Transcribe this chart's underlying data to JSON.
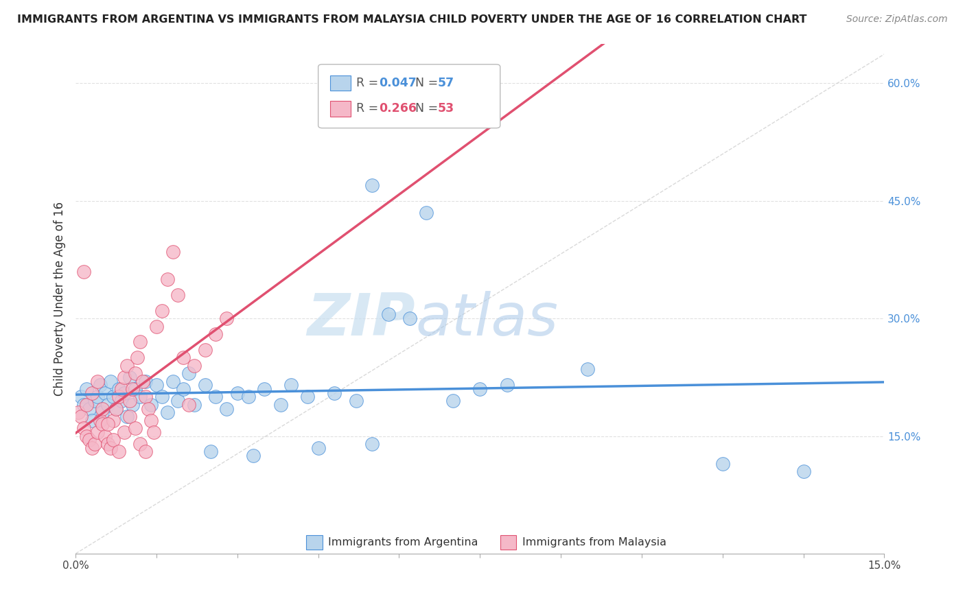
{
  "title": "IMMIGRANTS FROM ARGENTINA VS IMMIGRANTS FROM MALAYSIA CHILD POVERTY UNDER THE AGE OF 16 CORRELATION CHART",
  "source": "Source: ZipAtlas.com",
  "ylabel": "Child Poverty Under the Age of 16",
  "xlim": [
    0.0,
    15.0
  ],
  "ylim": [
    0.0,
    65.0
  ],
  "ytick_vals": [
    15.0,
    30.0,
    45.0,
    60.0
  ],
  "ytick_labels": [
    "15.0%",
    "30.0%",
    "45.0%",
    "60.0%"
  ],
  "xticks": [
    0.0,
    1.5,
    3.0,
    4.5,
    6.0,
    7.5,
    9.0,
    10.5,
    12.0,
    13.5,
    15.0
  ],
  "xtick_labels": [
    "0.0%",
    "",
    "",
    "",
    "",
    "",
    "",
    "",
    "",
    "",
    "15.0%"
  ],
  "color_argentina": "#b8d4ec",
  "color_malaysia": "#f5b8c8",
  "color_trendline_argentina": "#4a90d9",
  "color_trendline_malaysia": "#e05070",
  "color_diagonal": "#d0d0d0",
  "watermark_zip": "ZIP",
  "watermark_atlas": "atlas",
  "argentina_x": [
    0.1,
    0.15,
    0.2,
    0.25,
    0.3,
    0.35,
    0.4,
    0.45,
    0.5,
    0.55,
    0.6,
    0.65,
    0.7,
    0.75,
    0.8,
    0.85,
    0.9,
    0.95,
    1.0,
    1.05,
    1.1,
    1.2,
    1.3,
    1.4,
    1.5,
    1.6,
    1.7,
    1.8,
    1.9,
    2.0,
    2.1,
    2.2,
    2.4,
    2.6,
    2.8,
    3.0,
    3.2,
    3.5,
    3.8,
    4.0,
    4.3,
    4.8,
    5.2,
    5.5,
    5.8,
    6.2,
    6.5,
    7.0,
    7.5,
    8.0,
    9.5,
    12.0,
    13.5,
    5.5,
    4.5,
    3.3,
    2.5
  ],
  "argentina_y": [
    20.0,
    19.0,
    21.0,
    18.5,
    17.0,
    19.5,
    20.0,
    21.5,
    18.0,
    20.5,
    19.0,
    22.0,
    20.0,
    18.5,
    21.0,
    19.5,
    20.5,
    17.5,
    22.5,
    19.0,
    21.0,
    20.0,
    22.0,
    19.0,
    21.5,
    20.0,
    18.0,
    22.0,
    19.5,
    21.0,
    23.0,
    19.0,
    21.5,
    20.0,
    18.5,
    20.5,
    20.0,
    21.0,
    19.0,
    21.5,
    20.0,
    20.5,
    19.5,
    47.0,
    30.5,
    30.0,
    43.5,
    19.5,
    21.0,
    21.5,
    23.5,
    11.5,
    10.5,
    14.0,
    13.5,
    12.5,
    13.0
  ],
  "malaysia_x": [
    0.05,
    0.1,
    0.15,
    0.2,
    0.25,
    0.3,
    0.35,
    0.4,
    0.45,
    0.5,
    0.55,
    0.6,
    0.65,
    0.7,
    0.75,
    0.8,
    0.85,
    0.9,
    0.95,
    1.0,
    1.05,
    1.1,
    1.15,
    1.2,
    1.25,
    1.3,
    1.35,
    1.4,
    1.45,
    1.5,
    1.6,
    1.7,
    1.8,
    1.9,
    2.0,
    2.1,
    2.2,
    2.4,
    2.6,
    2.8,
    0.2,
    0.3,
    0.4,
    0.5,
    0.6,
    0.7,
    0.8,
    0.9,
    1.0,
    1.1,
    1.2,
    1.3,
    0.15
  ],
  "malaysia_y": [
    18.0,
    17.5,
    16.0,
    15.0,
    14.5,
    13.5,
    14.0,
    15.5,
    17.0,
    16.5,
    15.0,
    14.0,
    13.5,
    17.0,
    18.5,
    20.0,
    21.0,
    22.5,
    24.0,
    19.5,
    21.0,
    23.0,
    25.0,
    27.0,
    22.0,
    20.0,
    18.5,
    17.0,
    15.5,
    29.0,
    31.0,
    35.0,
    38.5,
    33.0,
    25.0,
    19.0,
    24.0,
    26.0,
    28.0,
    30.0,
    19.0,
    20.5,
    22.0,
    18.5,
    16.5,
    14.5,
    13.0,
    15.5,
    17.5,
    16.0,
    14.0,
    13.0,
    36.0
  ]
}
